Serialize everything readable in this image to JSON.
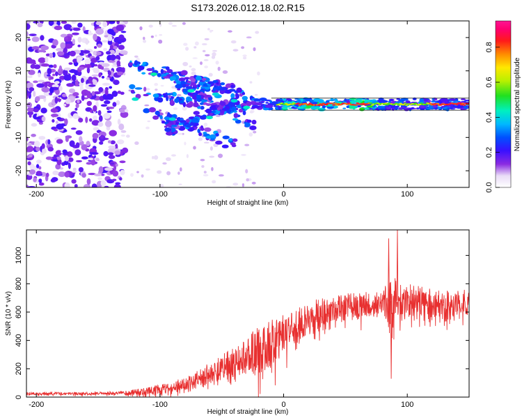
{
  "title": "S173.2026.012.18.02.R15",
  "colorbar": {
    "label": "Normalized spectral amplitude",
    "ticks": [
      "0.0",
      "0.2",
      "0.4",
      "0.6",
      "0.8"
    ],
    "range": [
      0,
      0.95
    ]
  },
  "chart_data": [
    {
      "type": "heatmap",
      "title": "S173.2026.012.18.02.R15",
      "xlabel": "Height of straight line (km)",
      "ylabel": "Frequency (Hz)",
      "xlim": [
        -208,
        150
      ],
      "ylim": [
        -25,
        25
      ],
      "xticks": [
        -200,
        -100,
        0,
        100
      ],
      "xtick_labels": [
        "-200",
        "-100",
        "0",
        "100"
      ],
      "yticks": [
        -20,
        -10,
        0,
        10,
        20
      ],
      "ytick_labels": [
        "-20",
        "-10",
        "0",
        "10",
        "20"
      ],
      "colormap": "rainbow (white low, purple, blue, cyan, green, yellow, orange, red, magenta high)",
      "features": [
        {
          "region": "x -208 to -130",
          "description": "broad scattered low-amplitude noise (purple) across all frequencies"
        },
        {
          "region": "x -125 to -20",
          "description": "diagonal streaks converging toward 0 Hz, amplitude 0.2-0.5"
        },
        {
          "region": "x 0 to 150",
          "description": "narrow band centered near 0 Hz, amplitude up to ~0.9"
        }
      ]
    },
    {
      "type": "line",
      "xlabel": "Height of straight line (km)",
      "ylabel": "SNR (10 * v/v)",
      "xlim": [
        -208,
        150
      ],
      "ylim": [
        0,
        1180
      ],
      "xticks": [
        -200,
        -100,
        0,
        100
      ],
      "xtick_labels": [
        "-200",
        "-100",
        "0",
        "100"
      ],
      "yticks": [
        0,
        200,
        400,
        600,
        800,
        1000
      ],
      "ytick_labels": [
        "0",
        "200",
        "400",
        "600",
        "800",
        "1000"
      ],
      "series": [
        {
          "name": "SNR",
          "color": "#e83030",
          "x": [
            -208,
            -190,
            -170,
            -150,
            -130,
            -115,
            -100,
            -90,
            -80,
            -70,
            -60,
            -50,
            -40,
            -30,
            -20,
            -10,
            0,
            10,
            20,
            30,
            40,
            50,
            60,
            70,
            80,
            90,
            100,
            110,
            120,
            130,
            140,
            150
          ],
          "y": [
            25,
            25,
            26,
            27,
            30,
            38,
            55,
            70,
            95,
            130,
            170,
            210,
            250,
            290,
            330,
            380,
            440,
            500,
            560,
            600,
            625,
            640,
            650,
            660,
            670,
            680,
            680,
            675,
            665,
            660,
            665,
            670
          ],
          "noise": [
            10,
            10,
            10,
            10,
            12,
            25,
            35,
            40,
            50,
            60,
            75,
            90,
            110,
            140,
            170,
            170,
            140,
            120,
            110,
            100,
            95,
            90,
            90,
            90,
            110,
            180,
            120,
            110,
            100,
            90,
            90,
            90
          ]
        }
      ],
      "annotations": [
        {
          "x": 85,
          "y": 1120,
          "text": "spike"
        },
        {
          "x": 92,
          "y": 1180,
          "text": "spike"
        },
        {
          "x": 87,
          "y": 130,
          "text": "dip"
        }
      ]
    }
  ]
}
